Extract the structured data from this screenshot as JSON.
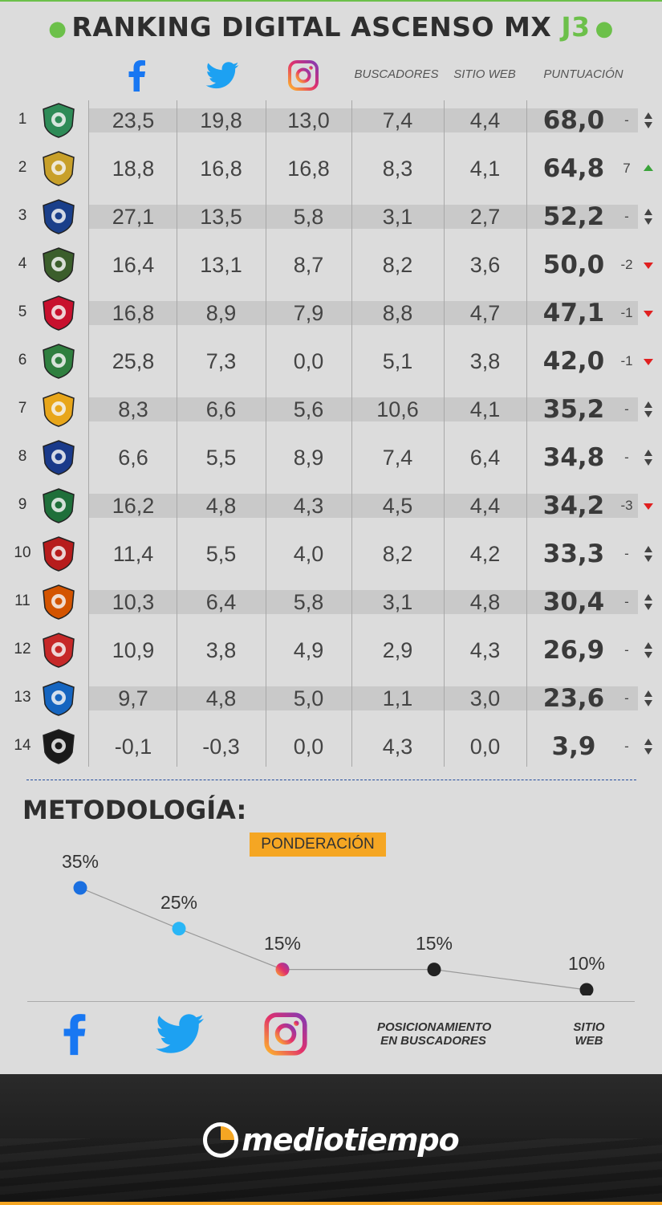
{
  "title": {
    "prefix": "RANKING DIGITAL ASCENSO MX",
    "highlight": "J3"
  },
  "colors": {
    "accent_green": "#6cc04a",
    "facebook": "#1877f2",
    "twitter": "#1da1f2",
    "orange": "#f5a623",
    "up": "#3aa33a",
    "down": "#e02020"
  },
  "header": {
    "facebook_icon": "facebook-icon",
    "twitter_icon": "twitter-icon",
    "instagram_icon": "instagram-icon",
    "buscadores": "BUSCADORES",
    "sitio_web": "SITIO WEB",
    "puntuacion": "PUNTUACIÓN"
  },
  "chart_data": [
    {
      "type": "table",
      "columns": [
        "",
        "",
        "facebook",
        "twitter",
        "instagram",
        "BUSCADORES",
        "SITIO WEB",
        "PUNTUACIÓN",
        ""
      ],
      "rows": [
        {
          "rank": "1",
          "logo": "zacatepec-logo",
          "fb": "23,5",
          "tw": "19,8",
          "ig": "13,0",
          "bus": "7,4",
          "web": "4,4",
          "score": "68,0",
          "change": "-",
          "trend": "same"
        },
        {
          "rank": "2",
          "logo": "leones-negros-logo",
          "fb": "18,8",
          "tw": "16,8",
          "ig": "16,8",
          "bus": "8,3",
          "web": "4,1",
          "score": "64,8",
          "change": "7",
          "trend": "up"
        },
        {
          "rank": "3",
          "logo": "tampico-madero-logo",
          "fb": "27,1",
          "tw": "13,5",
          "ig": "5,8",
          "bus": "3,1",
          "web": "2,7",
          "score": "52,2",
          "change": "-",
          "trend": "same"
        },
        {
          "rank": "4",
          "logo": "potros-uaem-logo",
          "fb": "16,4",
          "tw": "13,1",
          "ig": "8,7",
          "bus": "8,2",
          "web": "3,6",
          "score": "50,0",
          "change": "-2",
          "trend": "down"
        },
        {
          "rank": "5",
          "logo": "cimarrones-logo",
          "fb": "16,8",
          "tw": "8,9",
          "ig": "7,9",
          "bus": "8,8",
          "web": "4,7",
          "score": "47,1",
          "change": "-1",
          "trend": "down"
        },
        {
          "rank": "6",
          "logo": "lobos-logo",
          "fb": "25,8",
          "tw": "7,3",
          "ig": "0,0",
          "bus": "5,1",
          "web": "3,8",
          "score": "42,0",
          "change": "-1",
          "trend": "down"
        },
        {
          "rank": "7",
          "logo": "dorados-logo",
          "fb": "8,3",
          "tw": "6,6",
          "ig": "5,6",
          "bus": "10,6",
          "web": "4,1",
          "score": "35,2",
          "change": "-",
          "trend": "same"
        },
        {
          "rank": "8",
          "logo": "correcaminos-logo",
          "fb": "6,6",
          "tw": "5,5",
          "ig": "8,9",
          "bus": "7,4",
          "web": "6,4",
          "score": "34,8",
          "change": "-",
          "trend": "same"
        },
        {
          "rank": "9",
          "logo": "venados-logo",
          "fb": "16,2",
          "tw": "4,8",
          "ig": "4,3",
          "bus": "4,5",
          "web": "4,4",
          "score": "34,2",
          "change": "-3",
          "trend": "down"
        },
        {
          "rank": "10",
          "logo": "atlante-logo",
          "fb": "11,4",
          "tw": "5,5",
          "ig": "4,0",
          "bus": "8,2",
          "web": "4,2",
          "score": "33,3",
          "change": "-",
          "trend": "same"
        },
        {
          "rank": "11",
          "logo": "alebrijes-logo",
          "fb": "10,3",
          "tw": "6,4",
          "ig": "5,8",
          "bus": "3,1",
          "web": "4,8",
          "score": "30,4",
          "change": "-",
          "trend": "same"
        },
        {
          "rank": "12",
          "logo": "mineros-logo",
          "fb": "10,9",
          "tw": "3,8",
          "ig": "4,9",
          "bus": "2,9",
          "web": "4,3",
          "score": "26,9",
          "change": "-",
          "trend": "same"
        },
        {
          "rank": "13",
          "logo": "celaya-logo",
          "fb": "9,7",
          "tw": "4,8",
          "ig": "5,0",
          "bus": "1,1",
          "web": "3,0",
          "score": "23,6",
          "change": "-",
          "trend": "same"
        },
        {
          "rank": "14",
          "logo": "cafetaleros-logo",
          "fb": "-0,1",
          "tw": "-0,3",
          "ig": "0,0",
          "bus": "4,3",
          "web": "0,0",
          "score": "3,9",
          "change": "-",
          "trend": "same"
        }
      ]
    },
    {
      "type": "line",
      "title": "PONDERACIÓN",
      "categories": [
        "facebook",
        "twitter",
        "instagram",
        "POSICIONAMIENTO EN BUSCADORES",
        "SITIO WEB"
      ],
      "values": [
        35,
        25,
        15,
        15,
        10
      ],
      "value_labels": [
        "35%",
        "25%",
        "15%",
        "15%",
        "10%"
      ],
      "ylim": [
        0,
        40
      ]
    }
  ],
  "metodologia": {
    "heading": "METODOLOGÍA:",
    "pond_label": "PONDERACIÓN",
    "label_buscadores_1": "POSICIONAMIENTO",
    "label_buscadores_2": "EN BUSCADORES",
    "label_web_1": "SITIO",
    "label_web_2": "WEB"
  },
  "footer": {
    "brand": "mediotiempo",
    "logo_icon": "stopwatch-icon"
  }
}
